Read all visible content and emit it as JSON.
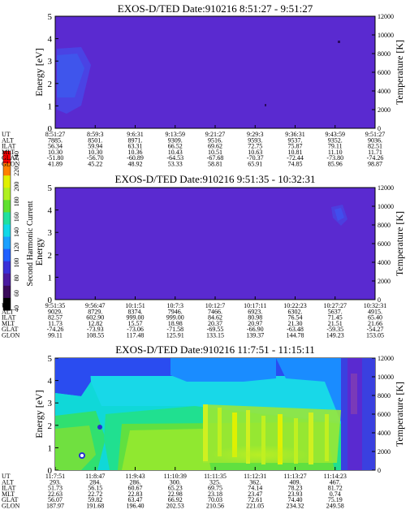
{
  "colorbar": {
    "label": "Second Harmonic Current",
    "ticks": [
      "40",
      "60",
      "80",
      "100",
      "120",
      "140",
      "160",
      "180",
      "200",
      "220",
      "240"
    ],
    "colors": [
      "#000000",
      "#3a0a5a",
      "#4a1aa0",
      "#3a30d8",
      "#2060ff",
      "#1aa0ff",
      "#10d8e8",
      "#20e0a0",
      "#60e030",
      "#b0f020",
      "#e0f000",
      "#ff8000",
      "#ff0000"
    ]
  },
  "panels": [
    {
      "title": "EXOS-D/TED   Date:910216  8:51:27 - 9:51:27",
      "ylabel_left": "Energy [eV]",
      "ylabel_right": "Temperature [K]",
      "fill": "#5a2ad0",
      "row_labels": [
        "UT",
        "ALT",
        "ILAT",
        "MLT",
        "GLAT",
        "GLON"
      ],
      "columns": [
        [
          "8:51:27",
          "7885.",
          "56.34",
          "10.30",
          "-51.80",
          "41.89"
        ],
        [
          "8:59:3",
          "8501.",
          "59.94",
          "10.30",
          "-56.70",
          "45.22"
        ],
        [
          "9:6:31",
          "8971.",
          "63.31",
          "10.36",
          "-60.89",
          "48.92"
        ],
        [
          "9:13:59",
          "9309.",
          "66.52",
          "10.43",
          "-64.53",
          "53.33"
        ],
        [
          "9:21:27",
          "9516.",
          "69.62",
          "10.51",
          "-67.68",
          "58.81"
        ],
        [
          "9:29:3",
          "9593.",
          "72.75",
          "10.63",
          "-70.37",
          "65.91"
        ],
        [
          "9:36:31",
          "9537.",
          "75.87",
          "10.81",
          "-72.44",
          "74.85"
        ],
        [
          "9:43:59",
          "9352.",
          "79.11",
          "11.10",
          "-73.80",
          "85.96"
        ],
        [
          "9:51:27",
          "9036.",
          "82.51",
          "11.71",
          "-74.26",
          "98.87"
        ]
      ]
    },
    {
      "title": "EXOS-D/TED   Date:910216  9:51:35 - 10:32:31",
      "ylabel_left": "Energy",
      "ylabel_right": "Temperature [K]",
      "fill": "#5a2ad0",
      "row_labels": [
        "UT",
        "ALT",
        "ILAT",
        "MLT",
        "GLAT",
        "GLON"
      ],
      "columns": [
        [
          "9:51:35",
          "9029.",
          "82.57",
          "11.73",
          "-74.26",
          "99.11"
        ],
        [
          "9:56:47",
          "8729.",
          "602.90",
          "12.82",
          "-73.93",
          "108.55"
        ],
        [
          "10:1:51",
          "8374.",
          "999.00",
          "15.57",
          "-73.06",
          "117.48"
        ],
        [
          "10:7:3",
          "7946.",
          "999.00",
          "18.98",
          "-71.58",
          "125.91"
        ],
        [
          "10:12:7",
          "7466.",
          "84.62",
          "20.37",
          "-69.55",
          "133.15"
        ],
        [
          "10:17:11",
          "6923.",
          "80.98",
          "20.97",
          "-66.90",
          "139.37"
        ],
        [
          "10:22:23",
          "6302.",
          "76.54",
          "21.30",
          "-63.48",
          "144.78"
        ],
        [
          "10:27:27",
          "5637.",
          "71.45",
          "21.51",
          "-59.35",
          "149.23"
        ],
        [
          "10:32:31",
          "4915.",
          "65.40",
          "21.66",
          "-54.27",
          "153.05"
        ]
      ]
    },
    {
      "title": "EXOS-D/TED   Date:910216  11:7:51 - 11:15:11",
      "ylabel_left": "Energy [eV]",
      "ylabel_right": "Temperature [K]",
      "fill": "#18d8e8",
      "row_labels": [
        "UT",
        "ALT",
        "ILAT",
        "MLT",
        "GLAT",
        "GLON"
      ],
      "columns": [
        [
          "11:7:51",
          "293.",
          "51.73",
          "22.63",
          "56.07",
          "187.97"
        ],
        [
          "11:8:47",
          "284.",
          "56.15",
          "22.72",
          "59.82",
          "191.68"
        ],
        [
          "11:9:43",
          "286.",
          "60.67",
          "22.83",
          "63.47",
          "196.40"
        ],
        [
          "11:10:39",
          "300.",
          "65.23",
          "22.98",
          "66.92",
          "202.53"
        ],
        [
          "11:11:35",
          "325.",
          "69.75",
          "23.18",
          "70.03",
          "210.56"
        ],
        [
          "11:12:31",
          "362.",
          "74.14",
          "23.47",
          "72.61",
          "221.05"
        ],
        [
          "11:13:27",
          "409.",
          "78.23",
          "23.93",
          "74.40",
          "234.32"
        ],
        [
          "11:14:23",
          "467.",
          "81.72",
          "0.74",
          "75.19",
          "249.58"
        ]
      ]
    }
  ],
  "chart_data": [
    {
      "type": "heatmap",
      "title": "EXOS-D/TED   Date:910216  8:51:27 - 9:51:27",
      "ylabel": "Energy [eV]",
      "y2label": "Temperature [K]",
      "ylim": [
        0,
        5
      ],
      "y2lim": [
        0,
        12000
      ],
      "yticks": [
        0,
        1,
        2,
        3,
        4,
        5
      ],
      "y2ticks": [
        0,
        2000,
        4000,
        6000,
        8000,
        10000,
        12000
      ],
      "x": [
        "8:51:27",
        "8:59:3",
        "9:6:31",
        "9:13:59",
        "9:21:27",
        "9:29:3",
        "9:36:31",
        "9:43:59",
        "9:51:27"
      ]
    },
    {
      "type": "heatmap",
      "title": "EXOS-D/TED   Date:910216  9:51:35 - 10:32:31",
      "ylabel": "Energy",
      "y2label": "Temperature [K]",
      "ylim": [
        0,
        5
      ],
      "y2lim": [
        0,
        12000
      ],
      "yticks": [
        0,
        1,
        2,
        3,
        4,
        5
      ],
      "y2ticks": [
        0,
        2000,
        4000,
        6000,
        8000,
        10000,
        12000
      ],
      "x": [
        "9:51:35",
        "9:56:47",
        "10:1:51",
        "10:7:3",
        "10:12:7",
        "10:17:11",
        "10:22:23",
        "10:27:27",
        "10:32:31"
      ]
    },
    {
      "type": "heatmap",
      "title": "EXOS-D/TED   Date:910216  11:7:51 - 11:15:11",
      "ylabel": "Energy [eV]",
      "y2label": "Temperature [K]",
      "ylim": [
        0,
        5
      ],
      "y2lim": [
        0,
        12000
      ],
      "yticks": [
        0,
        1,
        2,
        3,
        4,
        5
      ],
      "y2ticks": [
        0,
        2000,
        4000,
        6000,
        8000,
        10000,
        12000
      ],
      "x": [
        "11:7:51",
        "11:8:47",
        "11:9:43",
        "11:10:39",
        "11:11:35",
        "11:12:31",
        "11:13:27",
        "11:14:23"
      ]
    }
  ]
}
